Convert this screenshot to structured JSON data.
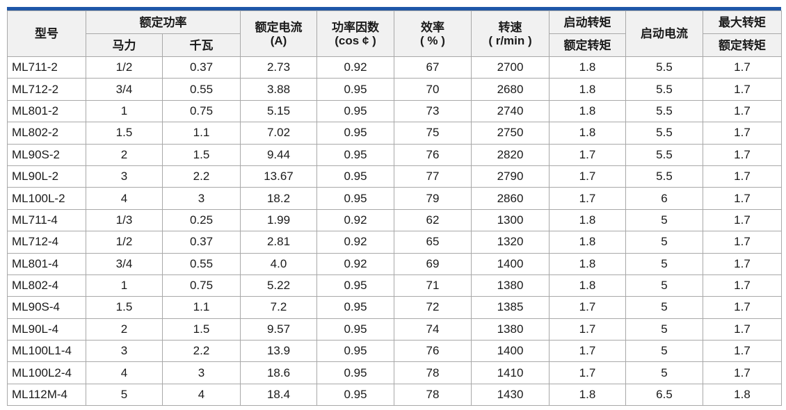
{
  "header": {
    "model": "型号",
    "rated_power": "额定功率",
    "hp": "马力",
    "kw": "千瓦",
    "rated_current": "额定电流",
    "rated_current_unit": "(A)",
    "power_factor": "功率因数",
    "power_factor_unit": "(cos ¢ )",
    "efficiency": "效率",
    "efficiency_unit": "( % )",
    "speed": "转速",
    "speed_unit": "( r/min )",
    "start_torque": "启动转矩",
    "rated_torque_1": "额定转矩",
    "start_current": "启动电流",
    "max_torque": "最大转矩",
    "rated_torque_2": "额定转矩"
  },
  "rows": [
    [
      "ML711-2",
      "1/2",
      "0.37",
      "2.73",
      "0.92",
      "67",
      "2700",
      "1.8",
      "5.5",
      "1.7"
    ],
    [
      "ML712-2",
      "3/4",
      "0.55",
      "3.88",
      "0.95",
      "70",
      "2680",
      "1.8",
      "5.5",
      "1.7"
    ],
    [
      "ML801-2",
      "1",
      "0.75",
      "5.15",
      "0.95",
      "73",
      "2740",
      "1.8",
      "5.5",
      "1.7"
    ],
    [
      "ML802-2",
      "1.5",
      "1.1",
      "7.02",
      "0.95",
      "75",
      "2750",
      "1.8",
      "5.5",
      "1.7"
    ],
    [
      "ML90S-2",
      "2",
      "1.5",
      "9.44",
      "0.95",
      "76",
      "2820",
      "1.7",
      "5.5",
      "1.7"
    ],
    [
      "ML90L-2",
      "3",
      "2.2",
      "13.67",
      "0.95",
      "77",
      "2790",
      "1.7",
      "5.5",
      "1.7"
    ],
    [
      "ML100L-2",
      "4",
      "3",
      "18.2",
      "0.95",
      "79",
      "2860",
      "1.7",
      "6",
      "1.7"
    ],
    [
      "ML711-4",
      "1/3",
      "0.25",
      "1.99",
      "0.92",
      "62",
      "1300",
      "1.8",
      "5",
      "1.7"
    ],
    [
      "ML712-4",
      "1/2",
      "0.37",
      "2.81",
      "0.92",
      "65",
      "1320",
      "1.8",
      "5",
      "1.7"
    ],
    [
      "ML801-4",
      "3/4",
      "0.55",
      "4.0",
      "0.92",
      "69",
      "1400",
      "1.8",
      "5",
      "1.7"
    ],
    [
      "ML802-4",
      "1",
      "0.75",
      "5.22",
      "0.95",
      "71",
      "1380",
      "1.8",
      "5",
      "1.7"
    ],
    [
      "ML90S-4",
      "1.5",
      "1.1",
      "7.2",
      "0.95",
      "72",
      "1385",
      "1.7",
      "5",
      "1.7"
    ],
    [
      "ML90L-4",
      "2",
      "1.5",
      "9.57",
      "0.95",
      "74",
      "1380",
      "1.7",
      "5",
      "1.7"
    ],
    [
      "ML100L1-4",
      "3",
      "2.2",
      "13.9",
      "0.95",
      "76",
      "1400",
      "1.7",
      "5",
      "1.7"
    ],
    [
      "ML100L2-4",
      "4",
      "3",
      "18.6",
      "0.95",
      "78",
      "1410",
      "1.7",
      "5",
      "1.7"
    ],
    [
      "ML112M-4",
      "5",
      "4",
      "18.4",
      "0.95",
      "78",
      "1430",
      "1.8",
      "6.5",
      "1.8"
    ]
  ],
  "colors": {
    "accent_bar": "#1f57a8",
    "header_bg": "#f1f1f1",
    "border": "#a8a8a8"
  }
}
